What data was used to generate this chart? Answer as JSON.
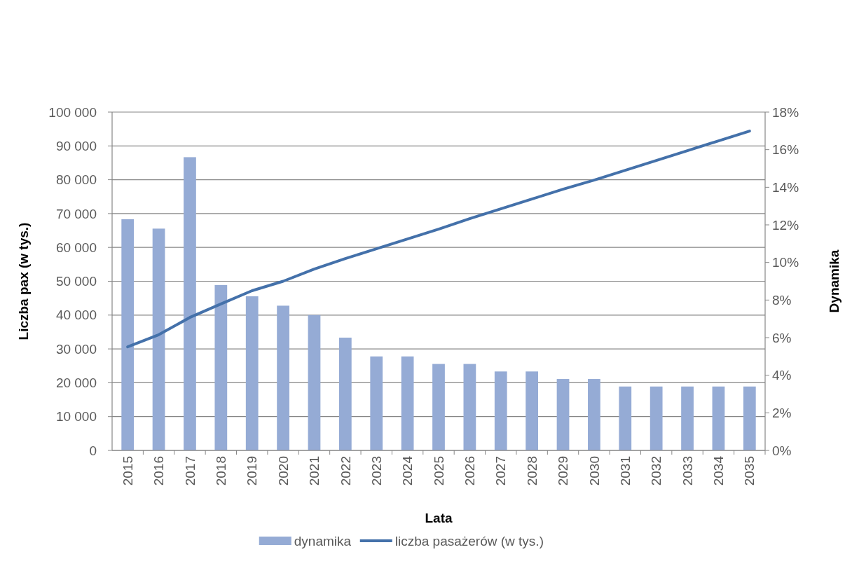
{
  "chart_data": {
    "type": "bar",
    "xlabel": "Lata",
    "ylabel": "Liczba pax (w tys.)",
    "y2label": "Dynamika",
    "categories": [
      "2015",
      "2016",
      "2017",
      "2018",
      "2019",
      "2020",
      "2021",
      "2022",
      "2023",
      "2024",
      "2025",
      "2026",
      "2027",
      "2028",
      "2029",
      "2030",
      "2031",
      "2032",
      "2033",
      "2034",
      "2035"
    ],
    "series": [
      {
        "name": "dynamika",
        "axis": "y2",
        "color": "#95abd5",
        "values": [
          12.3,
          11.8,
          15.6,
          8.8,
          8.2,
          7.7,
          7.2,
          6.0,
          5.0,
          5.0,
          4.6,
          4.6,
          4.2,
          4.2,
          3.8,
          3.8,
          3.4,
          3.4,
          3.4,
          3.4,
          3.4
        ]
      },
      {
        "name": "liczba pasażerów (w tys.)",
        "type": "line",
        "color": "#4471aa",
        "values": [
          30600,
          34200,
          39300,
          43300,
          47200,
          50000,
          53600,
          56700,
          59600,
          62500,
          65400,
          68500,
          71400,
          74300,
          77200,
          79900,
          82800,
          85700,
          88600,
          91500,
          94400
        ]
      }
    ],
    "ylim": [
      0,
      100000
    ],
    "yticks": [
      {
        "value": 0,
        "label": "0"
      },
      {
        "value": 10000,
        "label": "10 000"
      },
      {
        "value": 20000,
        "label": "20 000"
      },
      {
        "value": 30000,
        "label": "30 000"
      },
      {
        "value": 40000,
        "label": "40 000"
      },
      {
        "value": 50000,
        "label": "50 000"
      },
      {
        "value": 60000,
        "label": "60 000"
      },
      {
        "value": 70000,
        "label": "70 000"
      },
      {
        "value": 80000,
        "label": "80 000"
      },
      {
        "value": 90000,
        "label": "90 000"
      },
      {
        "value": 100000,
        "label": "100 000"
      }
    ],
    "y2lim": [
      0,
      18
    ],
    "y2ticks": [
      {
        "value": 0,
        "label": "0%"
      },
      {
        "value": 2,
        "label": "2%"
      },
      {
        "value": 4,
        "label": "4%"
      },
      {
        "value": 6,
        "label": "6%"
      },
      {
        "value": 8,
        "label": "8%"
      },
      {
        "value": 10,
        "label": "10%"
      },
      {
        "value": 12,
        "label": "12%"
      },
      {
        "value": 14,
        "label": "14%"
      },
      {
        "value": 16,
        "label": "16%"
      },
      {
        "value": 18,
        "label": "18%"
      }
    ],
    "grid": "y",
    "legend": "bottom",
    "marker": "none",
    "line_style": "solid"
  }
}
